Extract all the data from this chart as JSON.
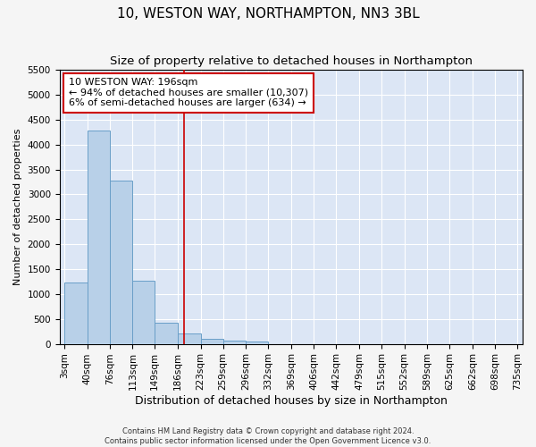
{
  "title": "10, WESTON WAY, NORTHAMPTON, NN3 3BL",
  "subtitle": "Size of property relative to detached houses in Northampton",
  "xlabel": "Distribution of detached houses by size in Northampton",
  "ylabel": "Number of detached properties",
  "footer_line1": "Contains HM Land Registry data © Crown copyright and database right 2024.",
  "footer_line2": "Contains public sector information licensed under the Open Government Licence v3.0.",
  "annotation_title": "10 WESTON WAY: 196sqm",
  "annotation_line1": "← 94% of detached houses are smaller (10,307)",
  "annotation_line2": "6% of semi-detached houses are larger (634) →",
  "property_size": 196,
  "bar_edges": [
    3,
    40,
    76,
    113,
    149,
    186,
    223,
    259,
    296,
    332,
    369,
    406,
    442,
    479,
    515,
    552,
    589,
    625,
    662,
    698,
    735
  ],
  "bar_values": [
    1230,
    4280,
    3270,
    1270,
    430,
    210,
    100,
    60,
    40,
    0,
    0,
    0,
    0,
    0,
    0,
    0,
    0,
    0,
    0,
    0
  ],
  "bar_color": "#b8d0e8",
  "bar_edge_color": "#6a9fc8",
  "vline_color": "#cc0000",
  "vline_x": 196,
  "annotation_box_color": "#cc0000",
  "annotation_text_color": "#000000",
  "plot_bg_color": "#dce6f5",
  "fig_bg_color": "#f5f5f5",
  "grid_color": "#ffffff",
  "ylim": [
    0,
    5500
  ],
  "yticks": [
    0,
    500,
    1000,
    1500,
    2000,
    2500,
    3000,
    3500,
    4000,
    4500,
    5000,
    5500
  ],
  "title_fontsize": 11,
  "subtitle_fontsize": 9.5,
  "xlabel_fontsize": 9,
  "ylabel_fontsize": 8,
  "tick_fontsize": 7.5,
  "annotation_fontsize": 8,
  "footer_fontsize": 6
}
